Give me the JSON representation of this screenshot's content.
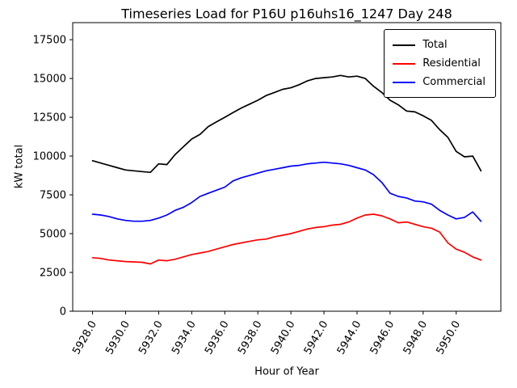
{
  "chart_data": {
    "type": "line",
    "title": "Timeseries Load for P16U p16uhs16_1247  Day 248",
    "xlabel": "Hour of Year",
    "ylabel": "kW total",
    "xlim": [
      5926.8,
      5952.7
    ],
    "ylim": [
      0,
      18600
    ],
    "grid": false,
    "legend_position": "upper right",
    "x_ticks": {
      "values": [
        5928,
        5930,
        5932,
        5934,
        5936,
        5938,
        5940,
        5942,
        5944,
        5946,
        5948,
        5950
      ],
      "labels": [
        "5928.0",
        "5930.0",
        "5932.0",
        "5934.0",
        "5936.0",
        "5938.0",
        "5940.0",
        "5942.0",
        "5944.0",
        "5946.0",
        "5948.0",
        "5950.0"
      ]
    },
    "y_ticks": {
      "values": [
        0,
        2500,
        5000,
        7500,
        10000,
        12500,
        15000,
        17500
      ],
      "labels": [
        "0",
        "2500",
        "5000",
        "7500",
        "10000",
        "12500",
        "15000",
        "17500"
      ]
    },
    "x": [
      5928.0,
      5928.5,
      5929.0,
      5929.5,
      5930.0,
      5930.5,
      5931.0,
      5931.5,
      5932.0,
      5932.5,
      5933.0,
      5933.5,
      5934.0,
      5934.5,
      5935.0,
      5935.5,
      5936.0,
      5936.5,
      5937.0,
      5937.5,
      5938.0,
      5938.5,
      5939.0,
      5939.5,
      5940.0,
      5940.5,
      5941.0,
      5941.5,
      5942.0,
      5942.5,
      5943.0,
      5943.5,
      5944.0,
      5944.5,
      5945.0,
      5945.5,
      5946.0,
      5946.5,
      5947.0,
      5947.5,
      5948.0,
      5948.5,
      5949.0,
      5949.5,
      5950.0,
      5950.5,
      5951.0,
      5951.5
    ],
    "series": [
      {
        "name": "Total",
        "color": "#000000",
        "values": [
          9700,
          9550,
          9400,
          9250,
          9100,
          9050,
          9000,
          8950,
          9500,
          9450,
          10100,
          10600,
          11100,
          11400,
          11900,
          12200,
          12500,
          12800,
          13100,
          13350,
          13600,
          13900,
          14100,
          14300,
          14400,
          14600,
          14850,
          15000,
          15050,
          15100,
          15200,
          15100,
          15150,
          15000,
          14500,
          14100,
          13600,
          13300,
          12900,
          12850,
          12600,
          12300,
          11700,
          11200,
          10300,
          9950,
          10000,
          9050
        ]
      },
      {
        "name": "Residential",
        "color": "#ff0000",
        "values": [
          3450,
          3400,
          3300,
          3250,
          3200,
          3180,
          3150,
          3050,
          3300,
          3250,
          3350,
          3500,
          3650,
          3750,
          3850,
          4000,
          4150,
          4300,
          4400,
          4500,
          4600,
          4650,
          4800,
          4900,
          5000,
          5150,
          5300,
          5400,
          5450,
          5550,
          5600,
          5750,
          6000,
          6200,
          6250,
          6150,
          5950,
          5700,
          5750,
          5600,
          5450,
          5350,
          5100,
          4400,
          4000,
          3800,
          3500,
          3300
        ]
      },
      {
        "name": "Commercial",
        "color": "#0000ff",
        "values": [
          6250,
          6200,
          6100,
          5950,
          5850,
          5800,
          5800,
          5850,
          6000,
          6200,
          6500,
          6700,
          7000,
          7400,
          7600,
          7800,
          8000,
          8400,
          8600,
          8750,
          8900,
          9050,
          9150,
          9250,
          9350,
          9400,
          9500,
          9550,
          9600,
          9550,
          9500,
          9400,
          9250,
          9100,
          8800,
          8300,
          7600,
          7400,
          7300,
          7100,
          7050,
          6900,
          6500,
          6200,
          5950,
          6050,
          6400,
          5800
        ]
      }
    ]
  }
}
